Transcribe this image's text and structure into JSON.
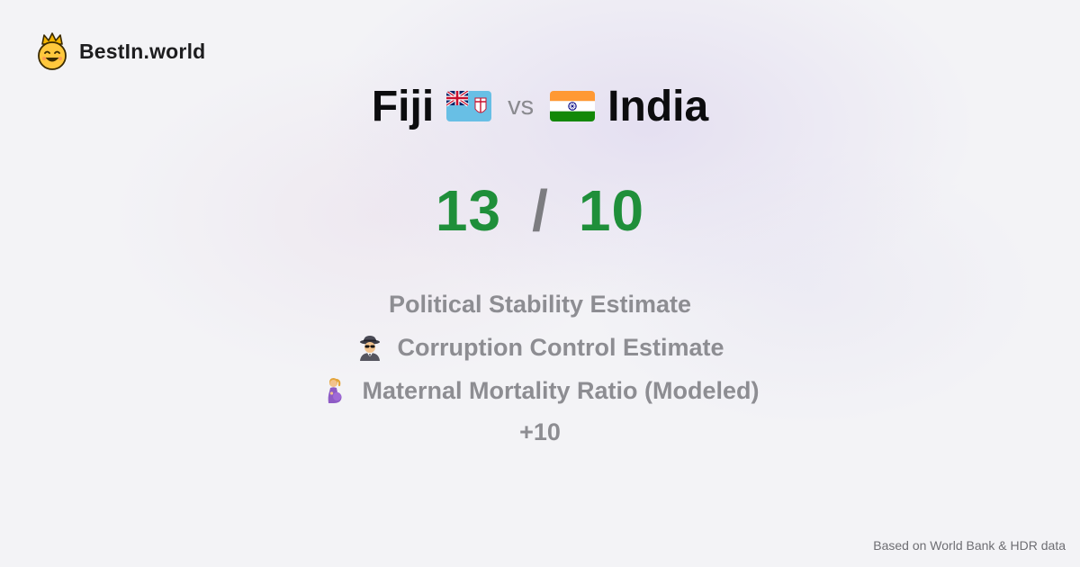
{
  "brand": {
    "name": "BestIn.world",
    "icon": "crowned-smiley-icon"
  },
  "comparison": {
    "left_country": "Fiji",
    "left_flag": "fiji-flag-icon",
    "vs_label": "vs",
    "right_country": "India",
    "right_flag": "india-flag-icon"
  },
  "scores": {
    "left": "13",
    "separator": "/",
    "right": "10"
  },
  "metrics": [
    {
      "label": "Political Stability Estimate",
      "icon": ""
    },
    {
      "label": "Corruption Control Estimate",
      "icon": "spy-icon"
    },
    {
      "label": "Maternal Mortality Ratio (Modeled)",
      "icon": "pregnant-woman-icon"
    }
  ],
  "more_label": "+10",
  "footer": "Based on World Bank & HDR data",
  "colors": {
    "score": "#1f8f3a",
    "muted": "#8d8d92",
    "text": "#0c0c0e"
  }
}
